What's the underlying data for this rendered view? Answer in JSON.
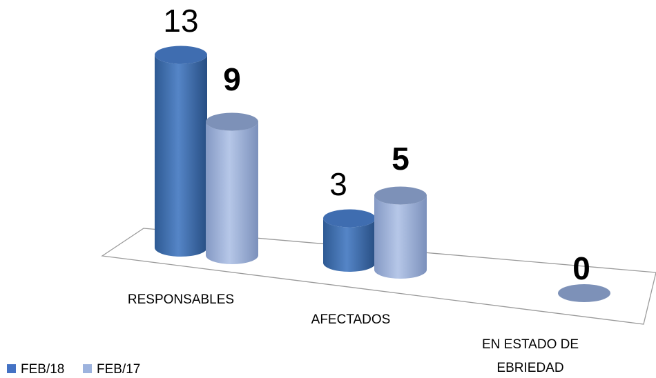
{
  "chart_data": {
    "type": "bar",
    "categories": [
      "RESPONSABLES",
      "AFECTADOS",
      "EN ESTADO DE EBRIEDAD"
    ],
    "category_lines": [
      [
        "RESPONSABLES"
      ],
      [
        "AFECTADOS"
      ],
      [
        "EN ESTADO DE",
        "EBRIEDAD"
      ]
    ],
    "series": [
      {
        "name": "FEB/18",
        "values": [
          13,
          3,
          0
        ],
        "color": "#4472C4"
      },
      {
        "name": "FEB/17",
        "values": [
          9,
          5,
          0
        ],
        "color": "#9DB3DE"
      }
    ],
    "data_labels": {
      "FEB/18": [
        "13",
        "3",
        ""
      ],
      "FEB/17": [
        "9",
        "5",
        "0"
      ]
    },
    "style": "3d-cylinder",
    "legend": "bottom-left",
    "grid": false,
    "title": "",
    "xlabel": "",
    "ylabel": ""
  }
}
